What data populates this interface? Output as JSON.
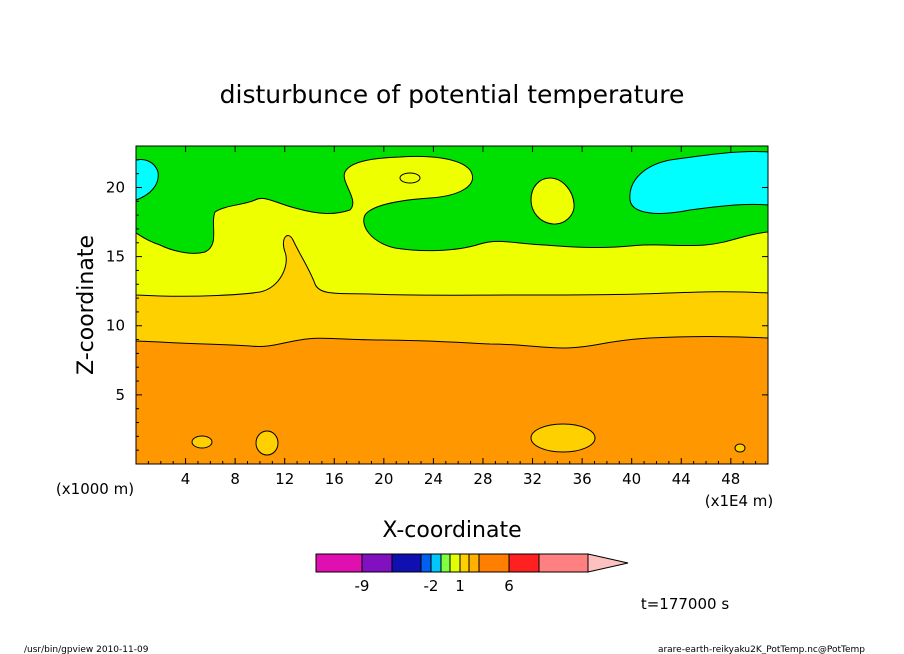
{
  "chart_data": {
    "type": "contour",
    "title": "disturbunce of potential temperature",
    "xlabel": "X-coordinate",
    "ylabel": "Z-coordinate",
    "xunit": "(x1E4 m)",
    "yunit": "(x1000 m)",
    "xlim": [
      0,
      51
    ],
    "ylim": [
      0,
      23
    ],
    "xticks": [
      4,
      8,
      12,
      16,
      20,
      24,
      28,
      32,
      36,
      40,
      44,
      48
    ],
    "yticks": [
      5,
      10,
      15,
      20
    ],
    "time_label": "t=177000 s",
    "colorbar": {
      "colors": [
        "#e010b0",
        "#8010c0",
        "#1010b0",
        "#0060f0",
        "#00c8ff",
        "#00e8e8",
        "#80ff40",
        "#e0ff00",
        "#ffd000",
        "#ffb000",
        "#ff8000",
        "#ff2020",
        "#ff8080",
        "#ffc0c0"
      ],
      "tick_labels": [
        "-9",
        "-2",
        "1",
        "6"
      ]
    },
    "fill_colors": {
      "cyan": "#00ffff",
      "green": "#00e000",
      "yellow": "#eeff00",
      "light_orange": "#ffd000",
      "orange": "#ff9800"
    }
  },
  "footer": {
    "left": "/usr/bin/gpview   2010-11-09",
    "right": "arare-earth-reikyaku2K_PotTemp.nc@PotTemp"
  }
}
